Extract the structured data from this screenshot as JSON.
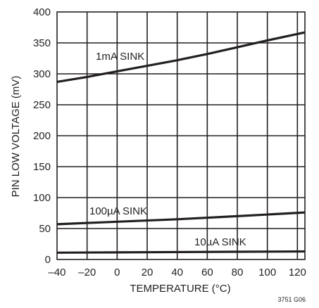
{
  "chart_data": {
    "type": "line",
    "xlabel": "TEMPERATURE (°C)",
    "ylabel": "PIN LOW VOLTAGE (mV)",
    "xlim": [
      -40,
      125
    ],
    "ylim": [
      0,
      400
    ],
    "x_ticks": [
      -40,
      -20,
      0,
      20,
      40,
      60,
      80,
      100,
      120
    ],
    "x_tick_labels": [
      "–40",
      "–20",
      "0",
      "20",
      "40",
      "60",
      "80",
      "100",
      "120"
    ],
    "y_ticks": [
      0,
      50,
      100,
      150,
      200,
      250,
      300,
      350,
      400
    ],
    "y_tick_labels": [
      "0",
      "50",
      "100",
      "150",
      "200",
      "250",
      "300",
      "350",
      "400"
    ],
    "grid": true,
    "series": [
      {
        "name": "1mA SINK",
        "x": [
          -40,
          -20,
          0,
          20,
          40,
          60,
          80,
          100,
          125
        ],
        "y": [
          287,
          295,
          304,
          313,
          322,
          332,
          343,
          354,
          367
        ]
      },
      {
        "name": "100µA SINK",
        "x": [
          -40,
          0,
          40,
          80,
          125
        ],
        "y": [
          57,
          61,
          65,
          70,
          76
        ]
      },
      {
        "name": "10µA SINK",
        "x": [
          -40,
          0,
          40,
          80,
          125
        ],
        "y": [
          11,
          11.5,
          12,
          12.5,
          13
        ]
      }
    ],
    "figure_id": "3751 G06"
  }
}
